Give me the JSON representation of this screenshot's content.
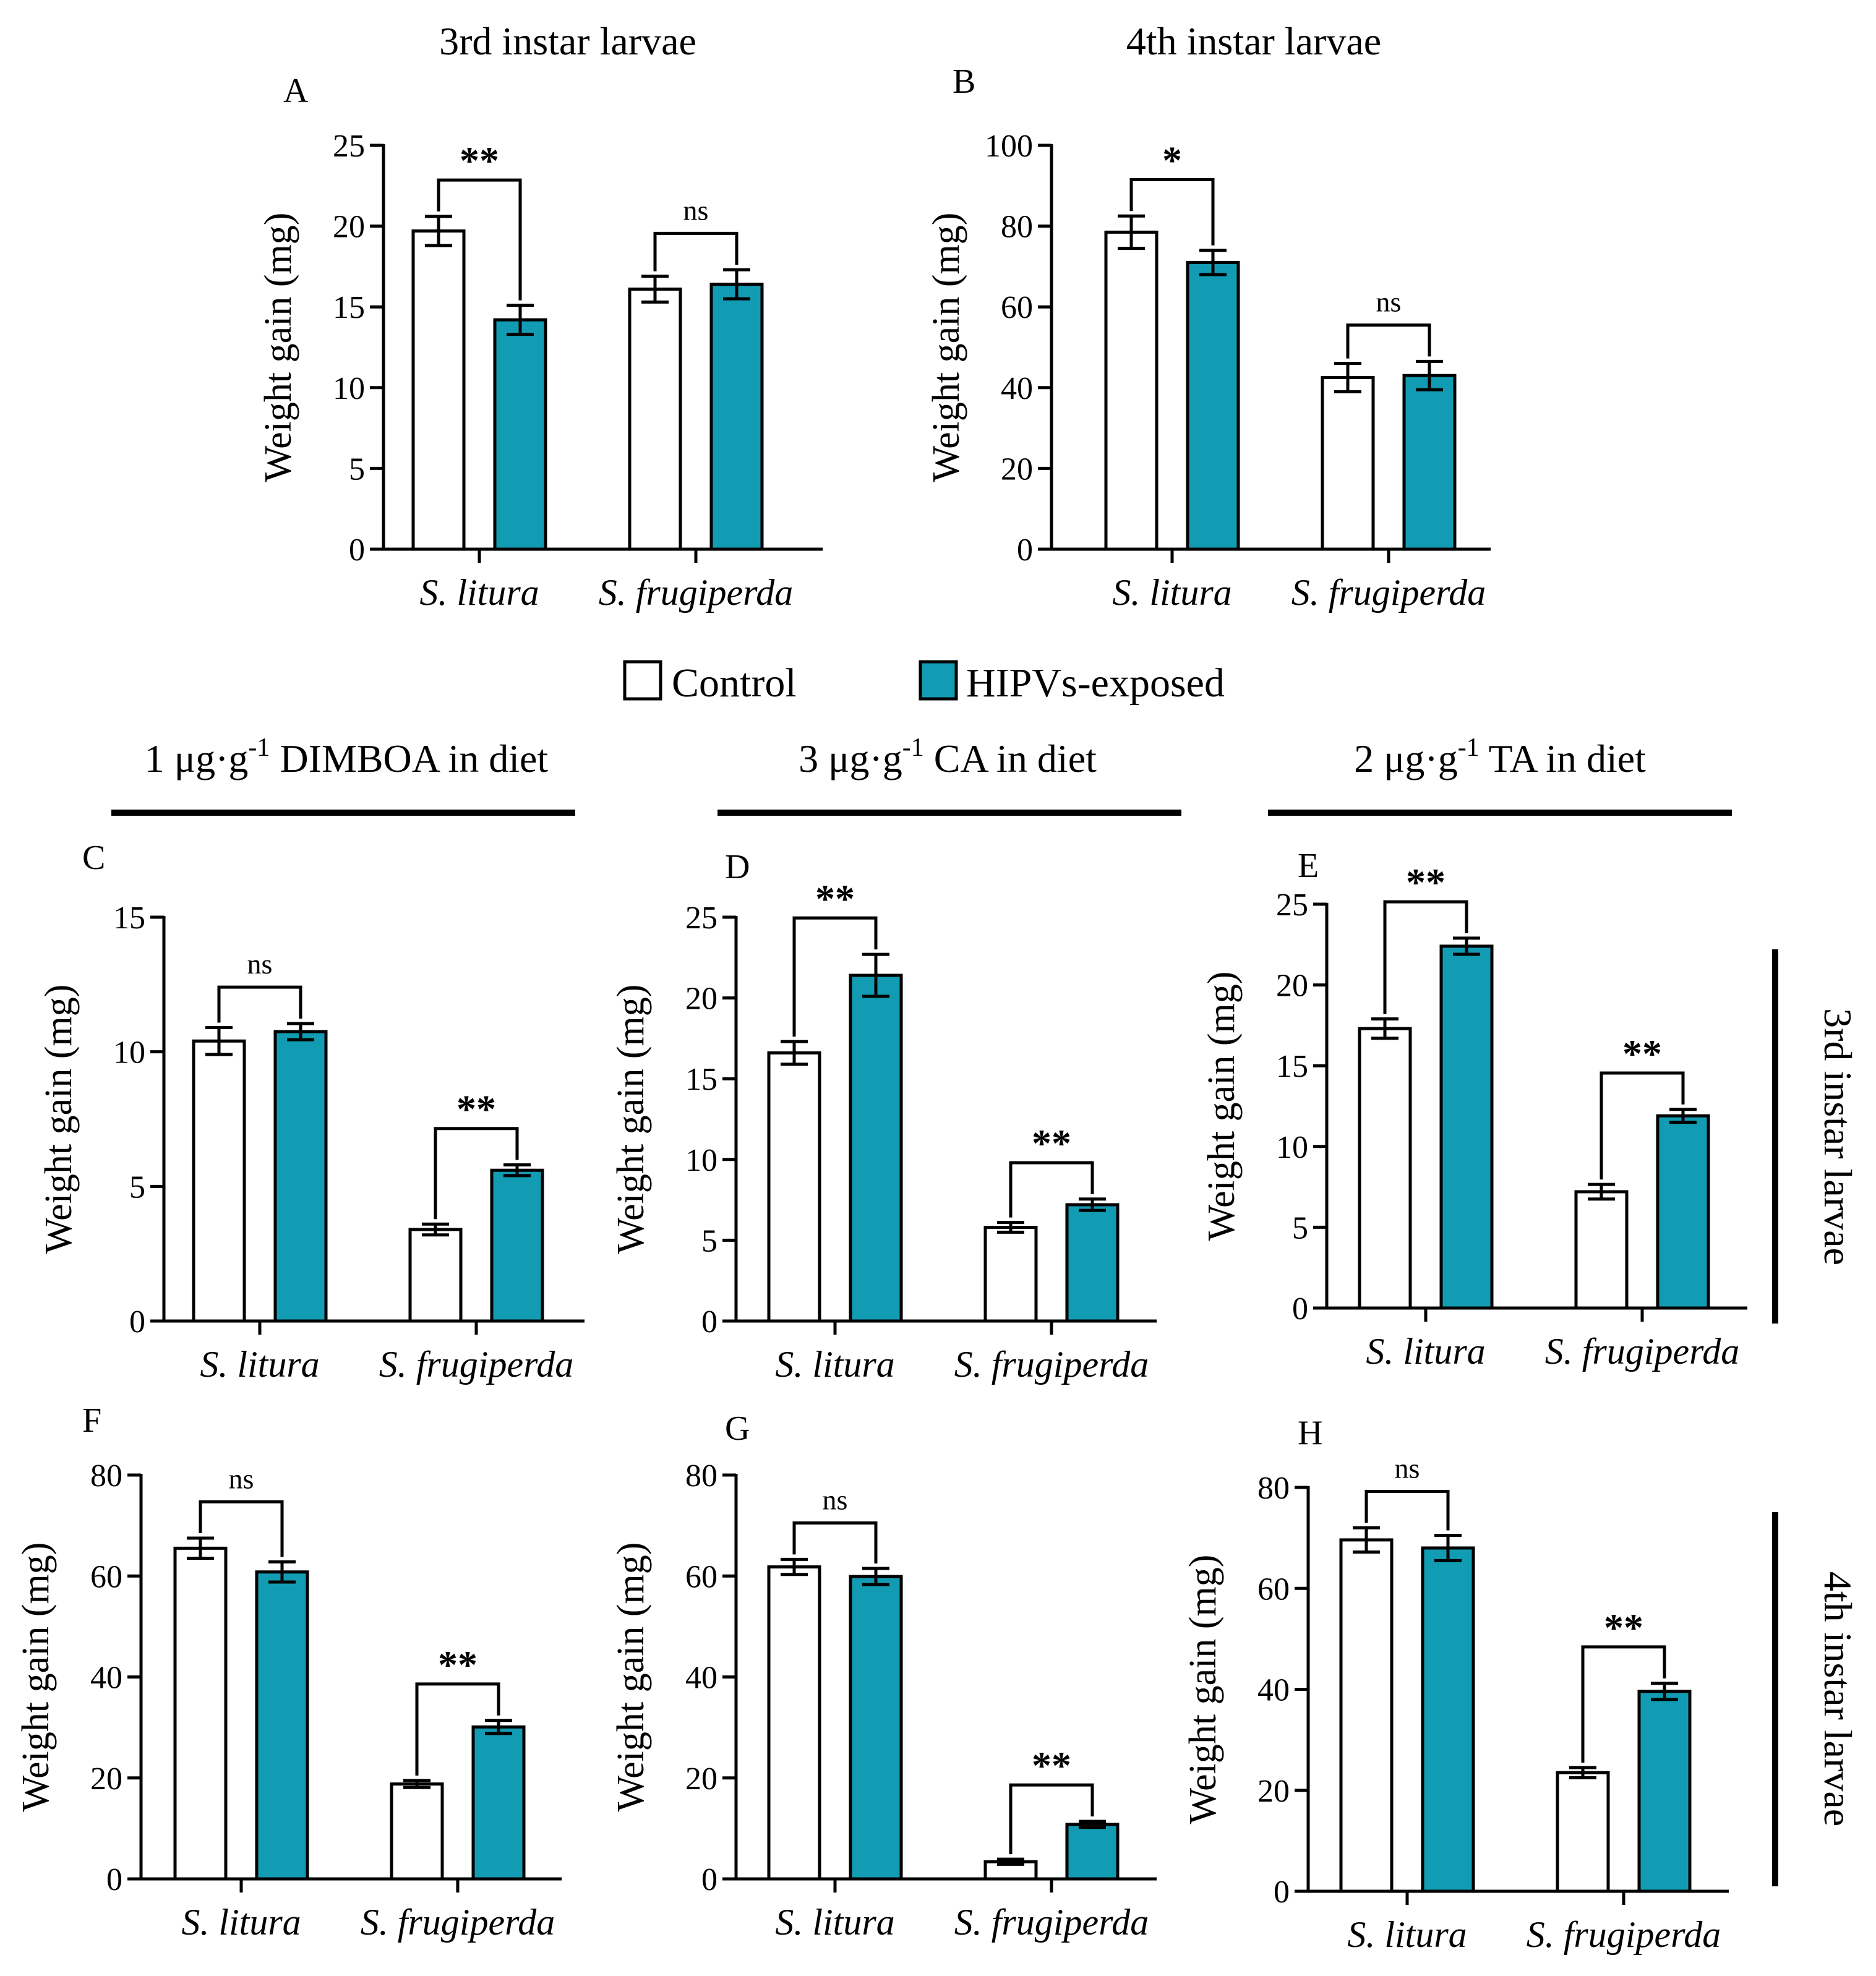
{
  "colors": {
    "control": "#ffffff",
    "hipvs": "#129cb3",
    "ink": "#000000"
  },
  "top_titles": [
    {
      "id": "3rd",
      "text": "3rd instar larvae"
    },
    {
      "id": "4th",
      "text": "4th instar larvae"
    }
  ],
  "legend": {
    "control": "Control",
    "hipvs": "HIPVs-exposed"
  },
  "group_headers": [
    {
      "pre": "1 μg·g",
      "sup": "-1",
      "post": " DIMBOA in diet"
    },
    {
      "pre": "3 μg·g",
      "sup": "-1",
      "post": " CA in diet"
    },
    {
      "pre": "2 μg·g",
      "sup": "-1",
      "post": " TA in diet"
    }
  ],
  "side_labels": [
    "3rd instar larvae",
    "4th instar larvae"
  ],
  "chart_data": [
    {
      "panel": "A",
      "type": "bar",
      "ylabel": "Weight gain (mg)",
      "ylim": [
        0,
        25
      ],
      "yticks": [
        0,
        5,
        10,
        15,
        20,
        25
      ],
      "categories": [
        "S. litura",
        "S. frugiperda"
      ],
      "series": [
        {
          "name": "Control",
          "values": [
            19.7,
            16.1
          ],
          "errors": [
            0.9,
            0.8
          ]
        },
        {
          "name": "HIPVs-exposed",
          "values": [
            14.2,
            16.4
          ],
          "errors": [
            0.9,
            0.9
          ]
        }
      ],
      "significance": [
        "**",
        "ns"
      ]
    },
    {
      "panel": "B",
      "type": "bar",
      "ylabel": "Weight gain (mg)",
      "ylim": [
        0,
        100
      ],
      "yticks": [
        0,
        20,
        40,
        60,
        80,
        100
      ],
      "categories": [
        "S. litura",
        "S. frugiperda"
      ],
      "series": [
        {
          "name": "Control",
          "values": [
            78.5,
            42.5
          ],
          "errors": [
            4.0,
            3.5
          ]
        },
        {
          "name": "HIPVs-exposed",
          "values": [
            71.0,
            43.0
          ],
          "errors": [
            3.0,
            3.5
          ]
        }
      ],
      "significance": [
        "*",
        "ns"
      ]
    },
    {
      "panel": "C",
      "type": "bar",
      "ylabel": "Weight gain (mg)",
      "ylim": [
        0,
        15
      ],
      "yticks": [
        0,
        5,
        10,
        15
      ],
      "categories": [
        "S. litura",
        "S. frugiperda"
      ],
      "series": [
        {
          "name": "Control",
          "values": [
            10.4,
            3.4
          ],
          "errors": [
            0.5,
            0.2
          ]
        },
        {
          "name": "HIPVs-exposed",
          "values": [
            10.75,
            5.6
          ],
          "errors": [
            0.3,
            0.2
          ]
        }
      ],
      "significance": [
        "ns",
        "**"
      ]
    },
    {
      "panel": "D",
      "type": "bar",
      "ylabel": "Weight gain (mg)",
      "ylim": [
        0,
        25
      ],
      "yticks": [
        0,
        5,
        10,
        15,
        20,
        25
      ],
      "categories": [
        "S. litura",
        "S. frugiperda"
      ],
      "series": [
        {
          "name": "Control",
          "values": [
            16.6,
            5.8
          ],
          "errors": [
            0.7,
            0.3
          ]
        },
        {
          "name": "HIPVs-exposed",
          "values": [
            21.4,
            7.2
          ],
          "errors": [
            1.3,
            0.35
          ]
        }
      ],
      "significance": [
        "**",
        "**"
      ]
    },
    {
      "panel": "E",
      "type": "bar",
      "ylabel": "Weight gain (mg)",
      "ylim": [
        0,
        25
      ],
      "yticks": [
        0,
        5,
        10,
        15,
        20,
        25
      ],
      "categories": [
        "S. litura",
        "S. frugiperda"
      ],
      "series": [
        {
          "name": "Control",
          "values": [
            17.3,
            7.2
          ],
          "errors": [
            0.6,
            0.45
          ]
        },
        {
          "name": "HIPVs-exposed",
          "values": [
            22.4,
            11.9
          ],
          "errors": [
            0.5,
            0.4
          ]
        }
      ],
      "significance": [
        "**",
        "**"
      ]
    },
    {
      "panel": "F",
      "type": "bar",
      "ylabel": "Weight gain (mg)",
      "ylim": [
        0,
        80
      ],
      "yticks": [
        0,
        20,
        40,
        60,
        80
      ],
      "categories": [
        "S. litura",
        "S. frugiperda"
      ],
      "series": [
        {
          "name": "Control",
          "values": [
            65.5,
            18.8
          ],
          "errors": [
            2.0,
            0.7
          ]
        },
        {
          "name": "HIPVs-exposed",
          "values": [
            60.8,
            30.1
          ],
          "errors": [
            2.0,
            1.3
          ]
        }
      ],
      "significance": [
        "ns",
        "**"
      ]
    },
    {
      "panel": "G",
      "type": "bar",
      "ylabel": "Weight gain (mg)",
      "ylim": [
        0,
        80
      ],
      "yticks": [
        0,
        20,
        40,
        60,
        80
      ],
      "categories": [
        "S. litura",
        "S. frugiperda"
      ],
      "series": [
        {
          "name": "Control",
          "values": [
            61.8,
            3.4
          ],
          "errors": [
            1.5,
            0.5
          ]
        },
        {
          "name": "HIPVs-exposed",
          "values": [
            59.9,
            10.8
          ],
          "errors": [
            1.6,
            0.6
          ]
        }
      ],
      "significance": [
        "ns",
        "**"
      ]
    },
    {
      "panel": "H",
      "type": "bar",
      "ylabel": "Weight gain (mg)",
      "ylim": [
        0,
        80
      ],
      "yticks": [
        0,
        20,
        40,
        60,
        80
      ],
      "categories": [
        "S. litura",
        "S. frugiperda"
      ],
      "series": [
        {
          "name": "Control",
          "values": [
            69.6,
            23.5
          ],
          "errors": [
            2.4,
            1.0
          ]
        },
        {
          "name": "HIPVs-exposed",
          "values": [
            68.0,
            39.6
          ],
          "errors": [
            2.5,
            1.6
          ]
        }
      ],
      "significance": [
        "ns",
        "**"
      ]
    }
  ]
}
